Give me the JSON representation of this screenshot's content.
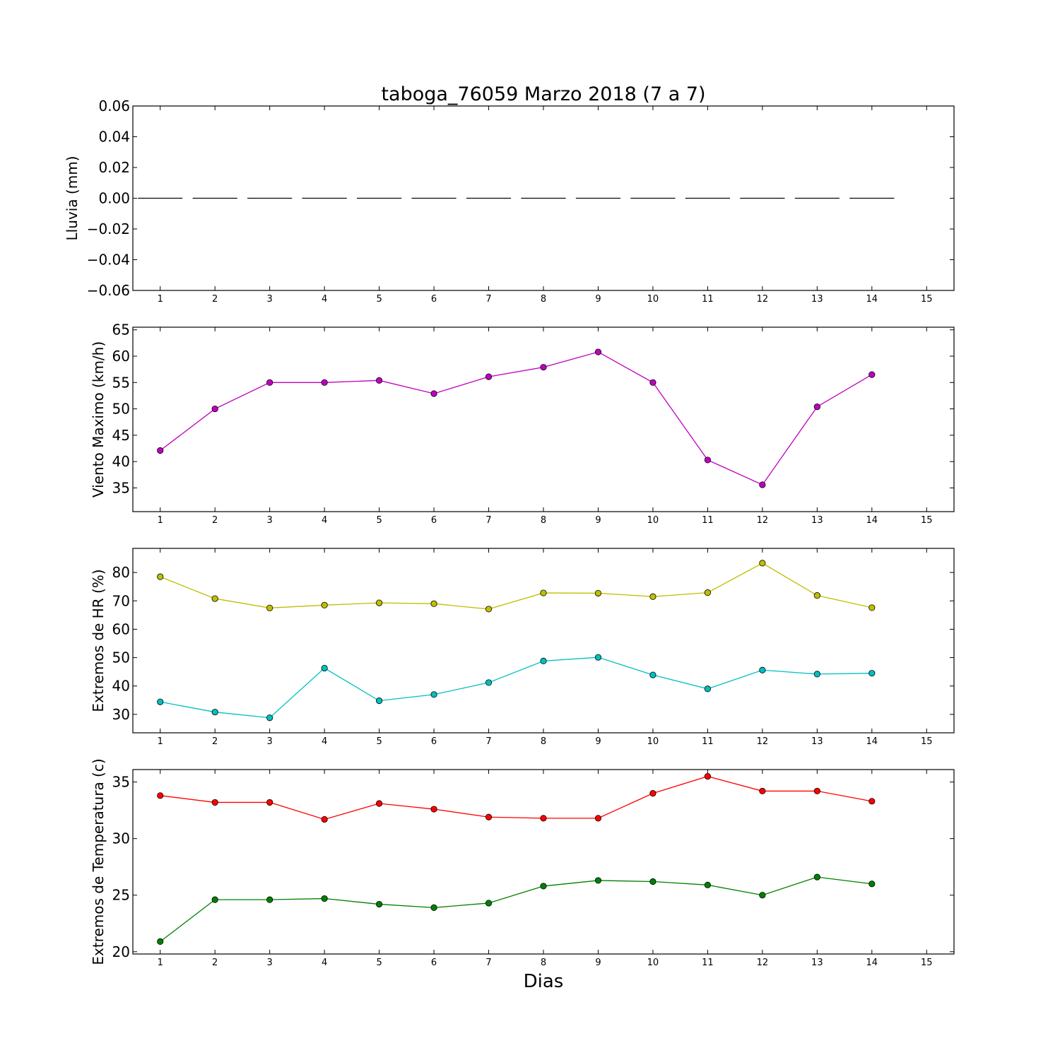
{
  "chart_data": {
    "title": "taboga_76059 Marzo 2018  (7 a 7)",
    "xlabel": "Dias",
    "x_ticks": [
      "1",
      "2",
      "3",
      "4",
      "5",
      "6",
      "7",
      "8",
      "9",
      "10",
      "11",
      "12",
      "13",
      "14",
      "15"
    ],
    "panels": [
      {
        "id": "lluvia",
        "type": "bar",
        "ylabel": "Lluvia (mm)",
        "ylim": [
          -0.06,
          0.06
        ],
        "y_ticks": [
          0.06,
          0.04,
          0.02,
          0.0,
          -0.02,
          -0.04,
          -0.06
        ],
        "y_tick_labels": [
          "0.06",
          "0.04",
          "0.02",
          "0.00",
          "−0.02",
          "−0.04",
          "−0.06"
        ],
        "x": [
          1,
          2,
          3,
          4,
          5,
          6,
          7,
          8,
          9,
          10,
          11,
          12,
          13,
          14
        ],
        "series": [
          {
            "color": "#000000",
            "values": [
              0,
              0,
              0,
              0,
              0,
              0,
              0,
              0,
              0,
              0,
              0,
              0,
              0,
              0
            ]
          }
        ]
      },
      {
        "id": "viento",
        "type": "line",
        "ylabel": "Viento Maximo (km/h)",
        "ylim": [
          30.5,
          65.5
        ],
        "y_ticks": [
          65,
          60,
          55,
          50,
          45,
          40,
          35
        ],
        "y_tick_labels": [
          "65",
          "60",
          "55",
          "50",
          "45",
          "40",
          "35"
        ],
        "x": [
          1,
          2,
          3,
          4,
          5,
          6,
          7,
          8,
          9,
          10,
          11,
          12,
          13,
          14
        ],
        "series": [
          {
            "color": "#bf00bf",
            "values": [
              42.1,
              50.0,
              55.0,
              55.0,
              55.4,
              52.9,
              56.1,
              57.9,
              60.8,
              55.0,
              40.3,
              35.6,
              50.4,
              56.5
            ]
          }
        ]
      },
      {
        "id": "hr",
        "type": "line",
        "ylabel": "Extremos de HR (%)",
        "ylim": [
          23.5,
          88.5
        ],
        "y_ticks": [
          80,
          70,
          60,
          50,
          40,
          30
        ],
        "y_tick_labels": [
          "80",
          "70",
          "60",
          "50",
          "40",
          "30"
        ],
        "x": [
          1,
          2,
          3,
          4,
          5,
          6,
          7,
          8,
          9,
          10,
          11,
          12,
          13,
          14
        ],
        "series": [
          {
            "color": "#bfbf00",
            "values": [
              78.5,
              70.8,
              67.5,
              68.5,
              69.3,
              69.0,
              67.1,
              72.8,
              72.7,
              71.5,
              72.9,
              83.3,
              71.9,
              67.6
            ]
          },
          {
            "color": "#00bfbf",
            "values": [
              34.4,
              30.8,
              28.8,
              46.3,
              34.8,
              37.0,
              41.2,
              48.8,
              50.1,
              43.9,
              39.0,
              45.6,
              44.2,
              44.5
            ]
          }
        ]
      },
      {
        "id": "temperatura",
        "type": "line",
        "ylabel": "Extremos de Temperatura (c)",
        "ylim": [
          19.8,
          36.1
        ],
        "y_ticks": [
          35,
          30,
          25,
          20
        ],
        "y_tick_labels": [
          "35",
          "30",
          "25",
          "20"
        ],
        "x": [
          1,
          2,
          3,
          4,
          5,
          6,
          7,
          8,
          9,
          10,
          11,
          12,
          13,
          14
        ],
        "series": [
          {
            "color": "#ff0000",
            "values": [
              33.8,
              33.2,
              33.2,
              31.7,
              33.1,
              32.6,
              31.9,
              31.8,
              31.8,
              34.0,
              35.5,
              34.2,
              34.2,
              33.3
            ]
          },
          {
            "color": "#008000",
            "values": [
              20.9,
              24.6,
              24.6,
              24.7,
              24.2,
              23.9,
              24.3,
              25.8,
              26.3,
              26.2,
              25.9,
              25.0,
              26.6,
              26.0
            ]
          }
        ]
      }
    ]
  }
}
